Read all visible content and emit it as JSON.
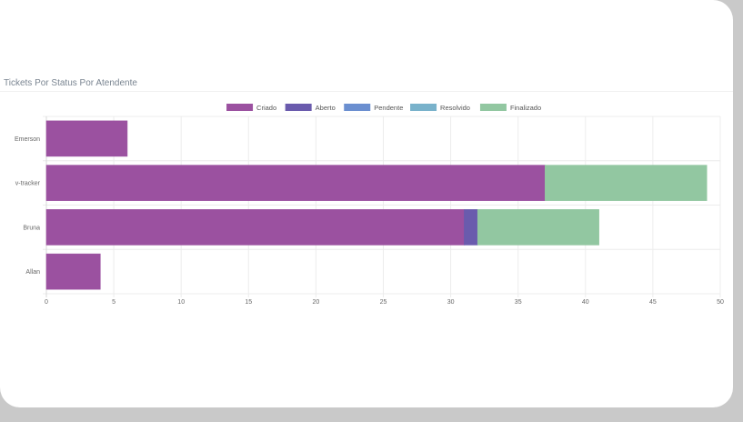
{
  "chart_data": {
    "type": "bar",
    "orientation": "horizontal",
    "stacked": true,
    "title": "Tickets Por Status Por Atendente",
    "categories": [
      "Emerson",
      "v-tracker",
      "Bruna",
      "Allan"
    ],
    "series": [
      {
        "name": "Criado",
        "color": "#9b51a0",
        "values": [
          6,
          37,
          31,
          4
        ]
      },
      {
        "name": "Aberto",
        "color": "#6a5bad",
        "values": [
          0,
          0,
          1,
          0
        ]
      },
      {
        "name": "Pendente",
        "color": "#6b8fd0",
        "values": [
          0,
          0,
          0,
          0
        ]
      },
      {
        "name": "Resolvido",
        "color": "#79b2cb",
        "values": [
          0,
          0,
          0,
          0
        ]
      },
      {
        "name": "Finalizado",
        "color": "#92c7a1",
        "values": [
          0,
          12,
          9,
          0
        ]
      }
    ],
    "xlim": [
      0,
      50
    ],
    "xticks": [
      0,
      5,
      10,
      15,
      20,
      25,
      30,
      35,
      40,
      45,
      50
    ],
    "grid": true,
    "legend": "top-center"
  }
}
